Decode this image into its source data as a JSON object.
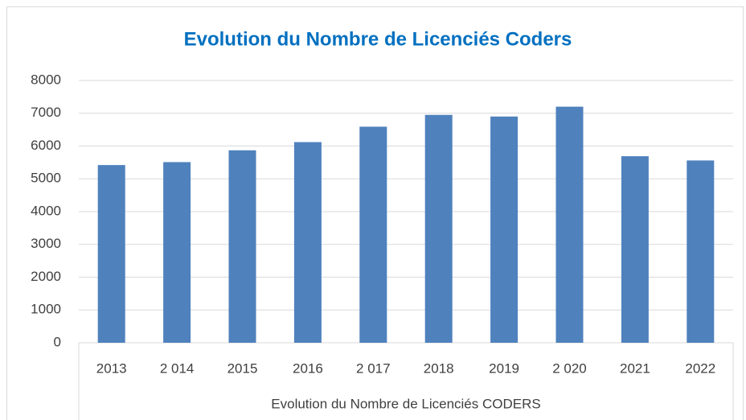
{
  "chart_data": {
    "type": "bar",
    "title": "Evolution du Nombre de Licenciés Coders",
    "x_label": "Evolution du Nombre de Licenciés CODERS",
    "categories": [
      "2013",
      "2 014",
      "2015",
      "2016",
      "2 017",
      "2018",
      "2019",
      "2 020",
      "2021",
      "2022"
    ],
    "values": [
      5420,
      5510,
      5870,
      6120,
      6590,
      6950,
      6900,
      7200,
      5690,
      5560
    ],
    "color": "#4f81bd",
    "ylim": [
      0,
      8000
    ],
    "yticks": [
      0,
      1000,
      2000,
      3000,
      4000,
      5000,
      6000,
      7000,
      8000
    ],
    "grid": true
  }
}
